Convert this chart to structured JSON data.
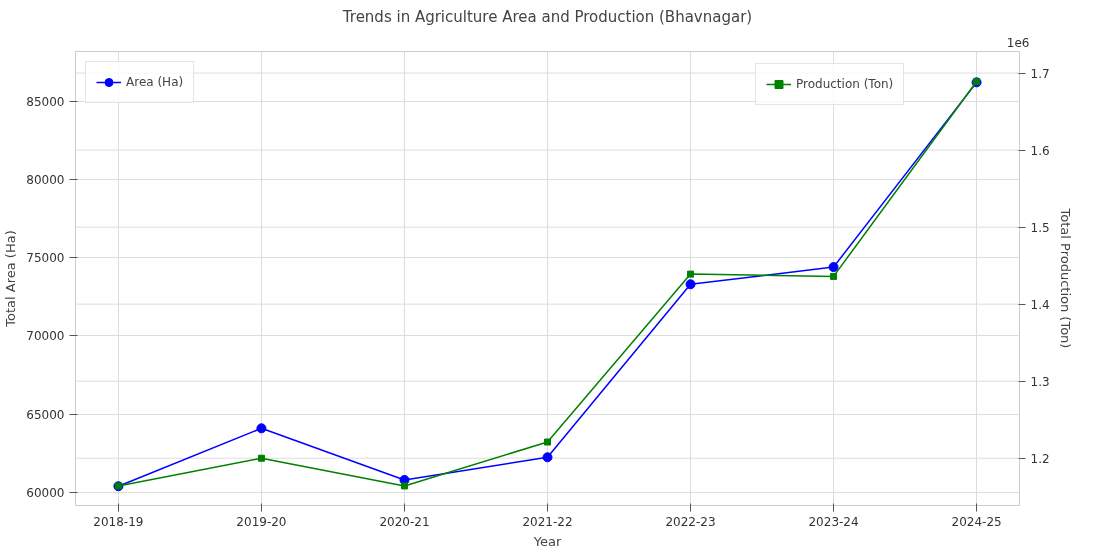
{
  "chart_data": {
    "type": "line",
    "title": "Trends in Agriculture Area and Production (Bhavnagar)",
    "xlabel": "Year",
    "ylabel": "Total Area (Ha)",
    "y2label": "Total Production (Ton)",
    "categories": [
      "2018-19",
      "2019-20",
      "2020-21",
      "2021-22",
      "2022-23",
      "2023-24",
      "2024-25"
    ],
    "series": [
      {
        "name": "Area (Ha)",
        "color": "#0000ff",
        "marker": "circle",
        "values": [
          60400,
          64100,
          60800,
          62250,
          73300,
          74400,
          86200
        ]
      },
      {
        "name": "Production (Ton)",
        "color": "#008000",
        "marker": "square",
        "axis": "y2",
        "values": [
          1.164,
          1.2,
          1.164,
          1.221,
          1.439,
          1.436,
          1.689
        ]
      }
    ],
    "ylim": [
      59170,
      88170
    ],
    "yticks": [
      60000,
      65000,
      70000,
      75000,
      80000,
      85000
    ],
    "y2lim": [
      1.1386,
      1.728
    ],
    "y2ticks": [
      1.2,
      1.3,
      1.4,
      1.5,
      1.6,
      1.7
    ],
    "annotations": [
      "1e6"
    ],
    "grid": true,
    "legend": "top",
    "line_style": "solid"
  }
}
